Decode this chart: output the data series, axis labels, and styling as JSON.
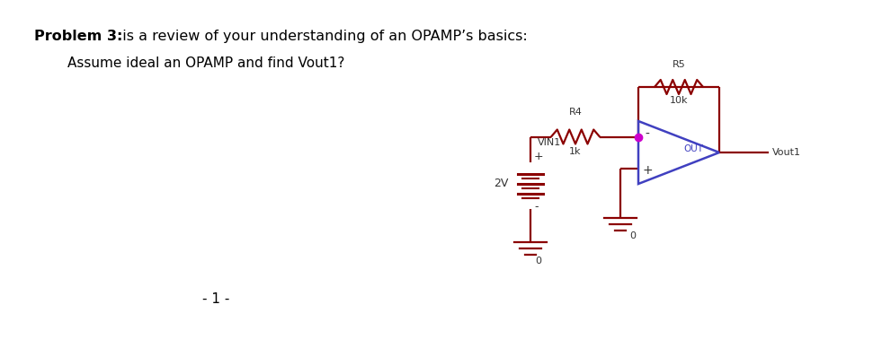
{
  "title_bold": "Problem 3:",
  "title_normal": "  is a review of your understanding of an OPAMP’s basics:",
  "subtitle": "Assume ideal an OPAMP and find Vout1?",
  "page_number": "- 1 -",
  "background_color": "#ffffff",
  "wire_color": "#8b0000",
  "opamp_color": "#4040c0",
  "node_color": "#cc00cc",
  "text_color": "#333333",
  "label_r4": "R4",
  "label_r4_val": "1k",
  "label_r5": "R5",
  "label_r5_val": "10k",
  "label_vin1": "VIN1",
  "label_2v": "2V",
  "label_out": "OUT",
  "label_vout1": "Vout1",
  "label_gnd": "0"
}
